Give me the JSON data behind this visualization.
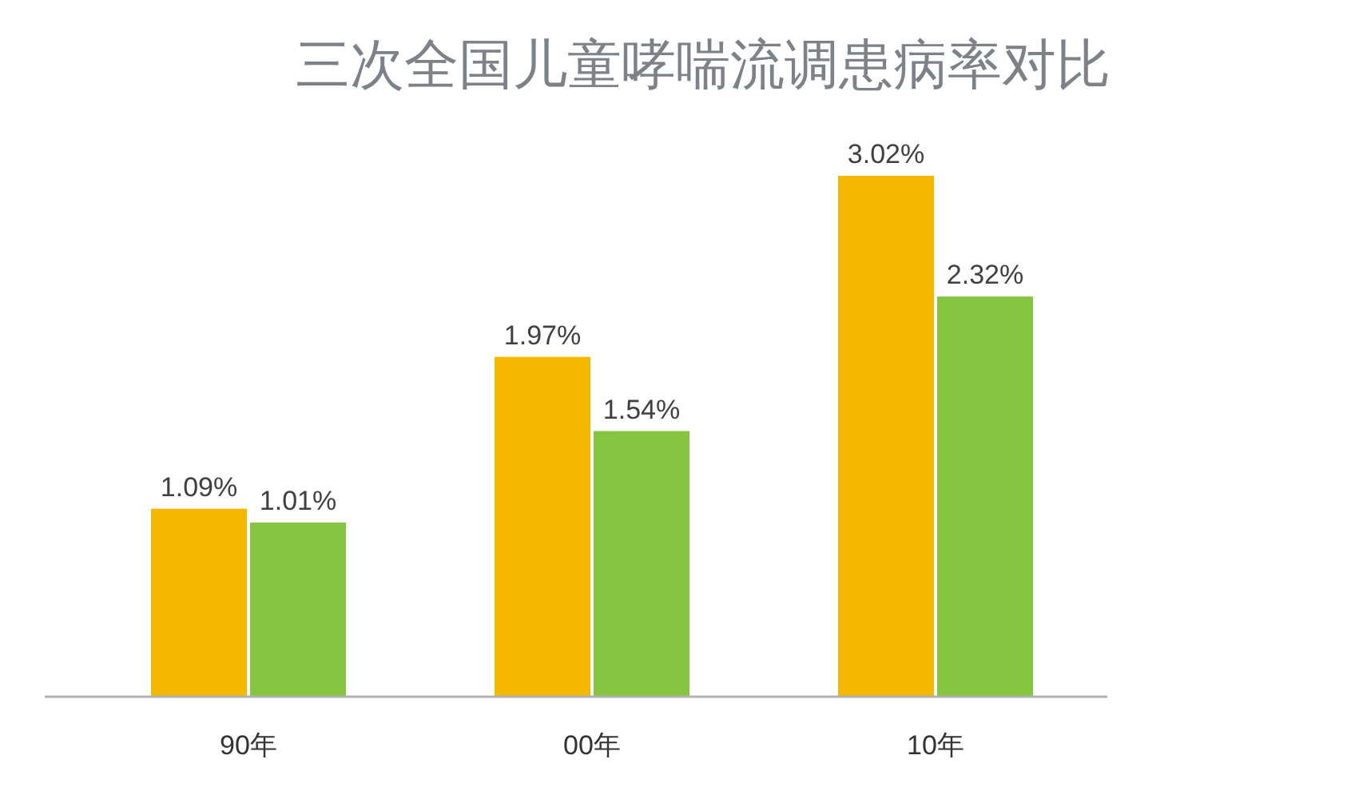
{
  "chart_data": {
    "type": "bar",
    "title": "三次全国儿童哮喘流调患病率对比",
    "categories": [
      "90年",
      "00年",
      "10年"
    ],
    "series": [
      {
        "color": "#f5b800",
        "values": [
          1.09,
          1.97,
          3.02
        ],
        "value_labels": [
          "1.09%",
          "1.97%",
          "3.02%"
        ]
      },
      {
        "color": "#86c540",
        "values": [
          1.01,
          1.54,
          2.32
        ],
        "value_labels": [
          "1.01%",
          "1.54%",
          "2.32%"
        ]
      }
    ]
  }
}
